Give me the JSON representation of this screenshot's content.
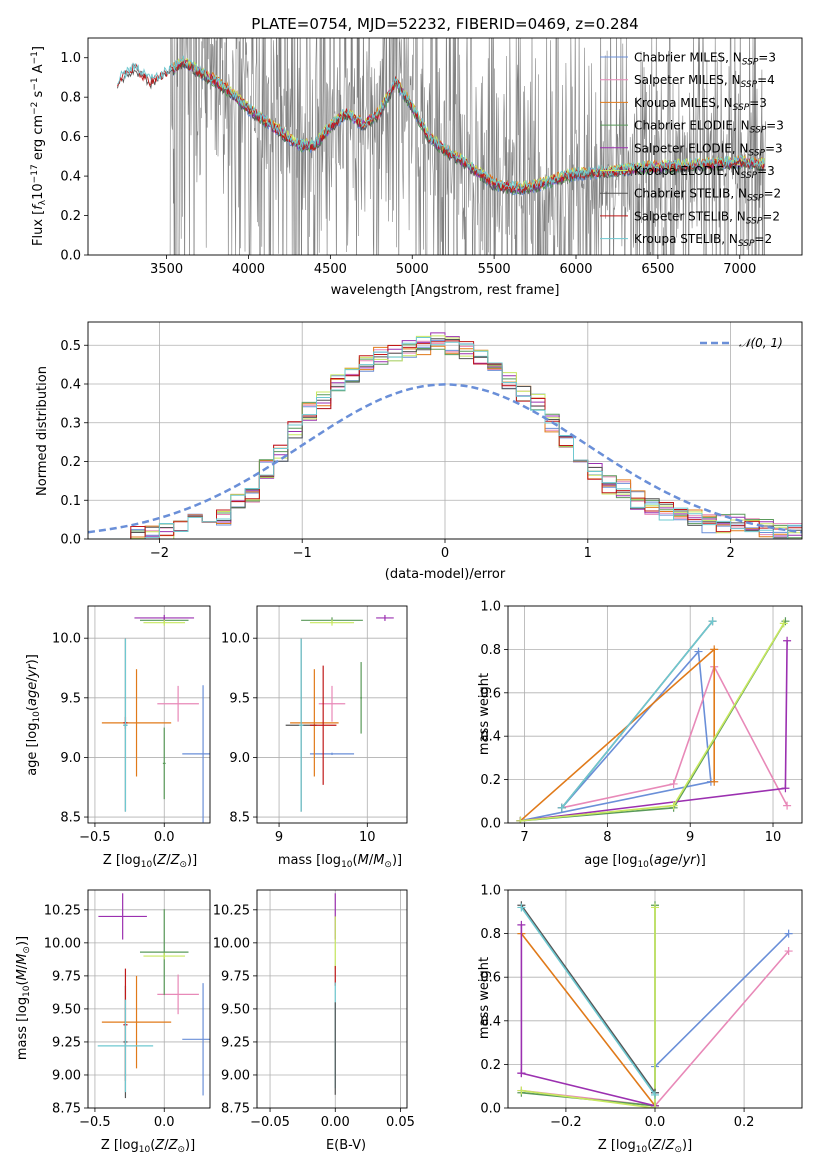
{
  "colors": {
    "chabrier_miles": "#6a8fd8",
    "salpeter_miles": "#e889b8",
    "kroupa_miles": "#e07a1a",
    "chabrier_elodie": "#5a9a5a",
    "salpeter_elodie": "#9b30b0",
    "kroupa_elodie": "#c8e860",
    "chabrier_stelib": "#555555",
    "salpeter_stelib": "#c01818",
    "kroupa_stelib": "#6ec8d0",
    "data": "#808080",
    "gaussian": "#6a8fd8"
  },
  "models": [
    "Chabrier MILES",
    "Salpeter MILES",
    "Kroupa MILES",
    "Chabrier ELODIE",
    "Salpeter ELODIE",
    "Kroupa ELODIE",
    "Chabrier STELIB",
    "Salpeter STELIB",
    "Kroupa STELIB"
  ],
  "chart_data": [
    {
      "type": "line",
      "title": "PLATE=0754, MJD=52232, FIBERID=0469, z=0.284",
      "xlabel": "wavelength [Angstrom, rest frame]",
      "ylabel": "Flux [fλ10⁻¹⁷ erg cm⁻² s⁻¹ A⁻¹]",
      "xlim": [
        3020,
        7380
      ],
      "ylim": [
        0,
        1.1
      ],
      "xticks": [
        "3500",
        "4000",
        "4500",
        "5000",
        "5500",
        "6000",
        "6500",
        "7000"
      ],
      "yticks": [
        "0.0",
        "0.2",
        "0.4",
        "0.6",
        "0.8",
        "1.0"
      ],
      "legend_placement": "upper right",
      "legend": [
        {
          "label": "Chabrier MILES, N",
          "sub": "SSP",
          "eq": "=3"
        },
        {
          "label": "Salpeter MILES, N",
          "sub": "SSP",
          "eq": "=4"
        },
        {
          "label": "Kroupa MILES, N",
          "sub": "SSP",
          "eq": "=3"
        },
        {
          "label": "Chabrier ELODIE, N",
          "sub": "SSP",
          "eq": "=3"
        },
        {
          "label": "Salpeter ELODIE, N",
          "sub": "SSP",
          "eq": "=3"
        },
        {
          "label": "Kroupa ELODIE, N",
          "sub": "SSP",
          "eq": "=3"
        },
        {
          "label": "Chabrier STELIB, N",
          "sub": "SSP",
          "eq": "=2"
        },
        {
          "label": "Salpeter STELIB, N",
          "sub": "SSP",
          "eq": "=2"
        },
        {
          "label": "Kroupa STELIB, N",
          "sub": "SSP",
          "eq": "=2"
        }
      ],
      "model_shape": {
        "x": [
          3200,
          3300,
          3400,
          3500,
          3550,
          3600,
          3700,
          3800,
          3900,
          4000,
          4100,
          4200,
          4300,
          4400,
          4500,
          4600,
          4700,
          4800,
          4850,
          4900,
          4960,
          5000,
          5100,
          5200,
          5300,
          5400,
          5500,
          5600,
          5700,
          5800,
          5900,
          6000,
          6200,
          6400,
          6600,
          6800,
          7000,
          7150
        ],
        "y": [
          0.88,
          0.95,
          0.88,
          0.92,
          0.95,
          0.98,
          0.93,
          0.88,
          0.82,
          0.74,
          0.68,
          0.62,
          0.56,
          0.55,
          0.65,
          0.72,
          0.66,
          0.72,
          0.8,
          0.88,
          0.8,
          0.75,
          0.6,
          0.53,
          0.48,
          0.42,
          0.36,
          0.34,
          0.34,
          0.36,
          0.39,
          0.41,
          0.42,
          0.44,
          0.45,
          0.46,
          0.47,
          0.46
        ]
      }
    },
    {
      "type": "bar",
      "xlabel": "(data-model)/error",
      "ylabel": "Normed distribution",
      "xlim": [
        -2.5,
        2.5
      ],
      "ylim": [
        0,
        0.56
      ],
      "xticks": [
        "−2",
        "−1",
        "0",
        "1",
        "2"
      ],
      "yticks": [
        "0.0",
        "0.1",
        "0.2",
        "0.3",
        "0.4",
        "0.5"
      ],
      "legend": [
        {
          "label": "𝒩(0, 1)"
        }
      ],
      "bin_centers": [
        -2.45,
        -2.35,
        -2.25,
        -2.15,
        -2.05,
        -1.95,
        -1.85,
        -1.75,
        -1.65,
        -1.55,
        -1.45,
        -1.35,
        -1.25,
        -1.15,
        -1.05,
        -0.95,
        -0.85,
        -0.75,
        -0.65,
        -0.55,
        -0.45,
        -0.35,
        -0.25,
        -0.15,
        -0.05,
        0.05,
        0.15,
        0.25,
        0.35,
        0.45,
        0.55,
        0.65,
        0.75,
        0.85,
        0.95,
        1.05,
        1.15,
        1.25,
        1.35,
        1.45,
        1.55,
        1.65,
        1.75,
        1.85,
        1.95,
        2.05,
        2.15,
        2.25,
        2.35,
        2.45
      ],
      "histogram": [
        0.0,
        0.0,
        0.0,
        0.01,
        0.01,
        0.02,
        0.03,
        0.04,
        0.05,
        0.05,
        0.1,
        0.12,
        0.18,
        0.22,
        0.28,
        0.33,
        0.36,
        0.4,
        0.43,
        0.45,
        0.47,
        0.48,
        0.49,
        0.5,
        0.51,
        0.5,
        0.49,
        0.47,
        0.44,
        0.41,
        0.38,
        0.35,
        0.3,
        0.25,
        0.2,
        0.17,
        0.14,
        0.13,
        0.1,
        0.08,
        0.07,
        0.06,
        0.05,
        0.04,
        0.04,
        0.04,
        0.03,
        0.03,
        0.02,
        0.02
      ],
      "gaussian": {
        "mean": 0,
        "sigma": 1
      }
    },
    {
      "type": "scatter",
      "xlabel": "Z [log₁₀(Z/Z⊙)]",
      "ylabel": "age  [log₁₀(age/yr)]",
      "xlim": [
        -0.55,
        0.33
      ],
      "ylim": [
        8.45,
        10.27
      ],
      "xticks": [
        "−0.5",
        "0.0"
      ],
      "yticks": [
        "8.5",
        "9.0",
        "9.5",
        "10.0"
      ],
      "points": [
        {
          "m": "chabrier_miles",
          "x": 0.28,
          "y": 9.03,
          "dx": 0.3,
          "dy": 1.15
        },
        {
          "m": "salpeter_miles",
          "x": 0.1,
          "y": 9.45,
          "dx": 0.3,
          "dy": 0.3
        },
        {
          "m": "kroupa_miles",
          "x": -0.2,
          "y": 9.29,
          "dx": 0.5,
          "dy": 0.9
        },
        {
          "m": "chabrier_elodie",
          "x": 0.0,
          "y": 10.15,
          "dx": 0.35,
          "dy": 0.05
        },
        {
          "m": "salpeter_elodie",
          "x": 0.0,
          "y": 10.17,
          "dx": 0.43,
          "dy": 0.05
        },
        {
          "m": "kroupa_elodie",
          "x": 0.0,
          "y": 10.13,
          "dx": 0.3,
          "dy": 0.05
        },
        {
          "m": "chabrier_stelib",
          "x": -0.28,
          "y": 9.27,
          "dx": 0.03,
          "dy": 1.45
        },
        {
          "m": "salpeter_stelib",
          "x": -0.28,
          "y": 9.29,
          "dx": 0.03,
          "dy": 0.1
        },
        {
          "m": "kroupa_stelib",
          "x": -0.28,
          "y": 9.27,
          "dx": 0.03,
          "dy": 1.45
        },
        {
          "m": "chabrier_elodie",
          "x": 0.0,
          "y": 8.95,
          "dx": 0.02,
          "dy": 0.6
        }
      ]
    },
    {
      "type": "scatter",
      "xlabel": "mass [log₁₀(M/M⊙)]",
      "ylabel": "",
      "xlim": [
        8.75,
        10.45
      ],
      "ylim": [
        8.45,
        10.27
      ],
      "xticks": [
        "9",
        "10"
      ],
      "yticks": [
        "8.5",
        "9.0",
        "9.5",
        "10.0"
      ],
      "points": [
        {
          "m": "chabrier_miles",
          "x": 9.6,
          "y": 9.03,
          "dx": 0.5,
          "dy": 0.02
        },
        {
          "m": "salpeter_miles",
          "x": 9.6,
          "y": 9.45,
          "dx": 0.3,
          "dy": 0.3
        },
        {
          "m": "kroupa_miles",
          "x": 9.4,
          "y": 9.29,
          "dx": 0.55,
          "dy": 0.9
        },
        {
          "m": "chabrier_elodie",
          "x": 9.6,
          "y": 10.15,
          "dx": 0.7,
          "dy": 0.05
        },
        {
          "m": "salpeter_elodie",
          "x": 10.2,
          "y": 10.17,
          "dx": 0.2,
          "dy": 0.05
        },
        {
          "m": "kroupa_elodie",
          "x": 9.6,
          "y": 10.13,
          "dx": 0.5,
          "dy": 0.05
        },
        {
          "m": "chabrier_stelib",
          "x": 9.25,
          "y": 9.27,
          "dx": 0.35,
          "dy": 1.45
        },
        {
          "m": "salpeter_stelib",
          "x": 9.5,
          "y": 9.27,
          "dx": 0.3,
          "dy": 1.0
        },
        {
          "m": "kroupa_stelib",
          "x": 9.25,
          "y": 9.27,
          "dx": 0.05,
          "dy": 1.45
        },
        {
          "m": "chabrier_elodie",
          "x": 9.93,
          "y": 9.5,
          "dx": 0.02,
          "dy": 0.6
        }
      ]
    },
    {
      "type": "line",
      "xlabel": "age  [log₁₀(age/yr)]",
      "ylabel": "mass weight",
      "xlim": [
        6.8,
        10.35
      ],
      "ylim": [
        0,
        1.0
      ],
      "xticks": [
        "7",
        "8",
        "9",
        "10"
      ],
      "yticks": [
        "0.0",
        "0.2",
        "0.4",
        "0.6",
        "0.8",
        "1.0"
      ],
      "series": [
        {
          "m": "chabrier_miles",
          "x": [
            6.95,
            9.25,
            9.1,
            7.45
          ],
          "y": [
            0.01,
            0.19,
            0.79,
            0.07
          ]
        },
        {
          "m": "salpeter_miles",
          "x": [
            7.45,
            8.8,
            9.29,
            10.17
          ],
          "y": [
            0.07,
            0.18,
            0.72,
            0.08
          ]
        },
        {
          "m": "kroupa_miles",
          "x": [
            6.95,
            9.29,
            9.29
          ],
          "y": [
            0.01,
            0.8,
            0.19
          ]
        },
        {
          "m": "chabrier_elodie",
          "x": [
            6.95,
            8.8,
            10.15
          ],
          "y": [
            0.01,
            0.07,
            0.93
          ]
        },
        {
          "m": "salpeter_elodie",
          "x": [
            6.95,
            10.15,
            10.17
          ],
          "y": [
            0.01,
            0.16,
            0.84
          ]
        },
        {
          "m": "kroupa_elodie",
          "x": [
            6.95,
            8.8,
            10.13
          ],
          "y": [
            0.01,
            0.08,
            0.92
          ]
        },
        {
          "m": "chabrier_stelib",
          "x": [
            7.45,
            9.27
          ],
          "y": [
            0.07,
            0.93
          ]
        },
        {
          "m": "kroupa_stelib",
          "x": [
            7.45,
            9.27
          ],
          "y": [
            0.07,
            0.93
          ]
        }
      ]
    },
    {
      "type": "scatter",
      "xlabel": "Z [log₁₀(Z/Z⊙)]",
      "ylabel": "mass [log₁₀(M/M⊙)]",
      "xlim": [
        -0.55,
        0.33
      ],
      "ylim": [
        8.75,
        10.4
      ],
      "xticks": [
        "−0.5",
        "0.0"
      ],
      "yticks": [
        "8.75",
        "9.00",
        "9.25",
        "9.50",
        "9.75",
        "10.00",
        "10.25"
      ],
      "points": [
        {
          "m": "chabrier_miles",
          "x": 0.28,
          "y": 9.27,
          "dx": 0.3,
          "dy": 0.85
        },
        {
          "m": "salpeter_miles",
          "x": 0.1,
          "y": 9.61,
          "dx": 0.3,
          "dy": 0.3
        },
        {
          "m": "kroupa_miles",
          "x": -0.2,
          "y": 9.4,
          "dx": 0.5,
          "dy": 0.7
        },
        {
          "m": "chabrier_elodie",
          "x": 0.0,
          "y": 9.93,
          "dx": 0.35,
          "dy": 0.65
        },
        {
          "m": "salpeter_elodie",
          "x": -0.3,
          "y": 10.2,
          "dx": 0.35,
          "dy": 0.35
        },
        {
          "m": "kroupa_elodie",
          "x": 0.0,
          "y": 9.9,
          "dx": 0.3,
          "dy": 0.05
        },
        {
          "m": "chabrier_stelib",
          "x": -0.28,
          "y": 9.25,
          "dx": 0.03,
          "dy": 0.85
        },
        {
          "m": "salpeter_stelib",
          "x": -0.28,
          "y": 9.38,
          "dx": 0.03,
          "dy": 0.85
        },
        {
          "m": "kroupa_stelib",
          "x": -0.28,
          "y": 9.22,
          "dx": 0.4,
          "dy": 0.7
        }
      ]
    },
    {
      "type": "scatter",
      "xlabel": "E(B-V)",
      "ylabel": "",
      "xlim": [
        -0.06,
        0.055
      ],
      "ylim": [
        8.75,
        10.4
      ],
      "xticks": [
        "−0.05",
        "0.00",
        "0.05"
      ],
      "yticks": [
        "8.75",
        "9.00",
        "9.25",
        "9.50",
        "9.75",
        "10.00",
        "10.25"
      ],
      "points": [
        {
          "m": "salpeter_elodie",
          "x": 0.0,
          "y": 10.2,
          "dx": 0,
          "dy": 0.35
        },
        {
          "m": "kroupa_elodie",
          "x": 0.0,
          "y": 10.0,
          "dx": 0,
          "dy": 0.4
        },
        {
          "m": "salpeter_stelib",
          "x": 0.0,
          "y": 9.75,
          "dx": 0,
          "dy": 0.15
        },
        {
          "m": "kroupa_stelib",
          "x": 0.0,
          "y": 9.3,
          "dx": 0,
          "dy": 0.8
        },
        {
          "m": "chabrier_stelib",
          "x": 0.0,
          "y": 9.2,
          "dx": 0,
          "dy": 0.7
        }
      ]
    },
    {
      "type": "line",
      "xlabel": "Z [log₁₀(Z/Z⊙)]",
      "ylabel": "mass weight",
      "xlim": [
        -0.33,
        0.33
      ],
      "ylim": [
        0,
        1.0
      ],
      "xticks": [
        "−0.2",
        "0.0",
        "0.2"
      ],
      "yticks": [
        "0.0",
        "0.2",
        "0.4",
        "0.6",
        "0.8",
        "1.0"
      ],
      "series": [
        {
          "m": "chabrier_miles",
          "x": [
            0.0,
            0.0,
            0.3
          ],
          "y": [
            0.07,
            0.19,
            0.8
          ]
        },
        {
          "m": "salpeter_miles",
          "x": [
            -0.3,
            0.0,
            0.3
          ],
          "y": [
            0.08,
            0.01,
            0.72
          ]
        },
        {
          "m": "kroupa_miles",
          "x": [
            -0.3,
            0.0
          ],
          "y": [
            0.8,
            0.01
          ]
        },
        {
          "m": "chabrier_elodie",
          "x": [
            -0.3,
            0.0,
            0.0
          ],
          "y": [
            0.07,
            0.01,
            0.93
          ]
        },
        {
          "m": "salpeter_elodie",
          "x": [
            -0.3,
            -0.3,
            -0.3,
            0.0
          ],
          "y": [
            0.84,
            0.16,
            0.16,
            0.01
          ]
        },
        {
          "m": "kroupa_elodie",
          "x": [
            -0.3,
            0.0,
            0.0
          ],
          "y": [
            0.08,
            0.0,
            0.92
          ]
        },
        {
          "m": "chabrier_stelib",
          "x": [
            -0.3,
            0.0
          ],
          "y": [
            0.93,
            0.07
          ]
        },
        {
          "m": "kroupa_stelib",
          "x": [
            -0.3,
            0.0
          ],
          "y": [
            0.92,
            0.06
          ]
        }
      ]
    }
  ]
}
